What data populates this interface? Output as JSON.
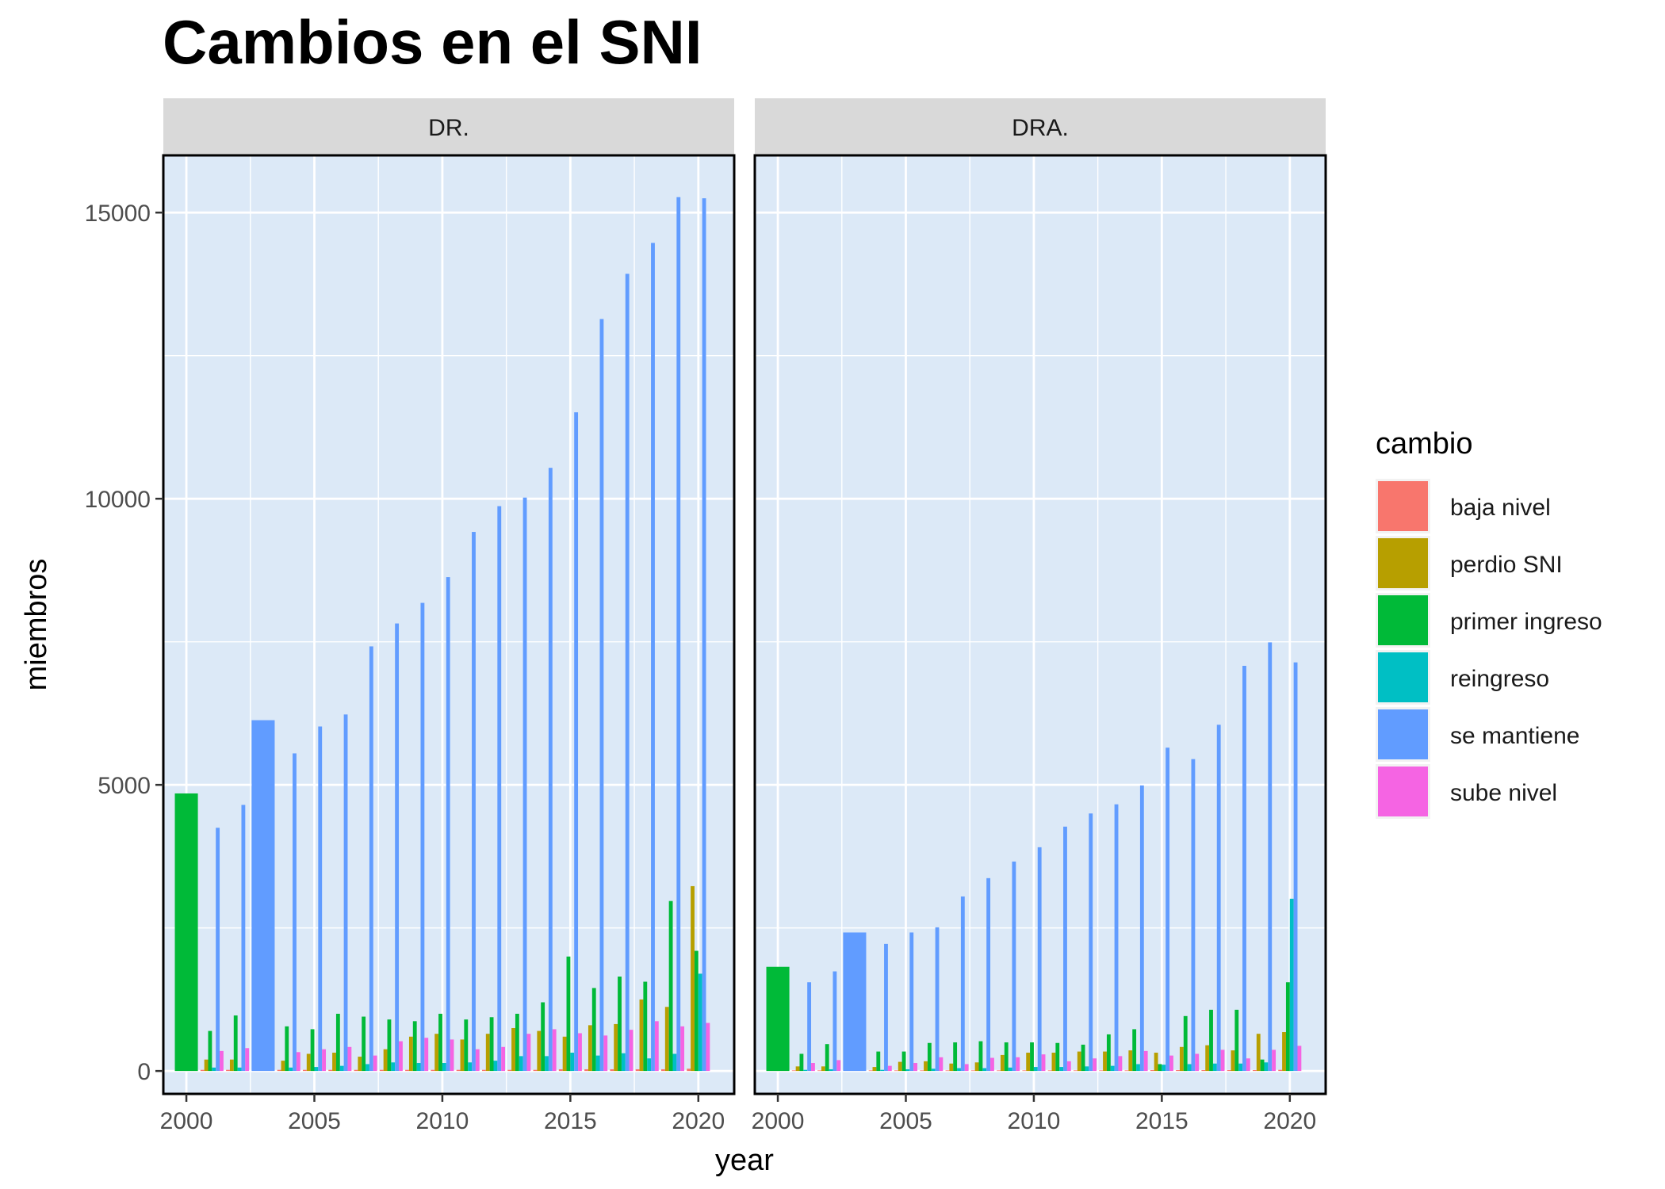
{
  "chart_data": {
    "type": "bar",
    "title": "Cambios en el SNI",
    "xlabel": "year",
    "ylabel": "miembros",
    "ylim": [
      -400,
      16000
    ],
    "xlim": [
      1999.1,
      2021.4
    ],
    "y_ticks": [
      0,
      5000,
      10000,
      15000
    ],
    "y_tick_labels": [
      "0",
      "5000",
      "10000",
      "15000"
    ],
    "x_ticks": [
      2000,
      2005,
      2010,
      2015,
      2020
    ],
    "x_tick_labels": [
      "2000",
      "2005",
      "2010",
      "2015",
      "2020"
    ],
    "grid": true,
    "legend": {
      "title": "cambio",
      "position": "right"
    },
    "series": [
      {
        "name": "baja nivel",
        "color": "#F8766D"
      },
      {
        "name": "perdio SNI",
        "color": "#B79F00"
      },
      {
        "name": "primer ingreso",
        "color": "#00BA38"
      },
      {
        "name": "reingreso",
        "color": "#00BFC4"
      },
      {
        "name": "se mantiene",
        "color": "#619CFF"
      },
      {
        "name": "sube nivel",
        "color": "#F564E3"
      }
    ],
    "years": [
      2000,
      2001,
      2002,
      2003,
      2004,
      2005,
      2006,
      2007,
      2008,
      2009,
      2010,
      2011,
      2012,
      2013,
      2014,
      2015,
      2016,
      2017,
      2018,
      2019,
      2020
    ],
    "panels": [
      {
        "label": "DR.",
        "values": {
          "baja nivel": [
            null,
            20,
            20,
            null,
            20,
            20,
            20,
            20,
            20,
            20,
            20,
            20,
            20,
            20,
            20,
            30,
            30,
            30,
            30,
            30,
            40
          ],
          "perdio SNI": [
            null,
            200,
            200,
            null,
            180,
            300,
            320,
            250,
            380,
            600,
            650,
            550,
            650,
            750,
            700,
            600,
            800,
            820,
            1250,
            1120,
            3230
          ],
          "primer ingreso": [
            4850,
            700,
            970,
            null,
            780,
            730,
            1000,
            950,
            900,
            870,
            1000,
            900,
            940,
            1000,
            1200,
            2000,
            1450,
            1650,
            1560,
            2970,
            2100
          ],
          "reingreso": [
            null,
            60,
            60,
            null,
            60,
            70,
            90,
            120,
            150,
            140,
            140,
            150,
            180,
            260,
            260,
            320,
            270,
            310,
            220,
            300,
            1700
          ],
          "se mantiene": [
            null,
            4250,
            4650,
            6130,
            5550,
            6020,
            6230,
            7420,
            7820,
            8180,
            8630,
            9420,
            9870,
            10020,
            10540,
            11510,
            13140,
            13930,
            14470,
            15270,
            15250
          ],
          "sube nivel": [
            null,
            350,
            400,
            null,
            330,
            380,
            420,
            270,
            520,
            580,
            550,
            380,
            420,
            650,
            730,
            660,
            620,
            720,
            870,
            780,
            840
          ]
        }
      },
      {
        "label": "DRA.",
        "values": {
          "baja nivel": [
            null,
            10,
            10,
            null,
            10,
            10,
            10,
            10,
            10,
            10,
            10,
            10,
            10,
            10,
            10,
            15,
            15,
            15,
            15,
            15,
            20
          ],
          "perdio SNI": [
            null,
            80,
            80,
            null,
            70,
            160,
            170,
            130,
            150,
            280,
            320,
            320,
            340,
            340,
            360,
            320,
            420,
            450,
            360,
            650,
            680
          ],
          "primer ingreso": [
            1820,
            300,
            470,
            null,
            340,
            340,
            490,
            500,
            520,
            500,
            500,
            490,
            460,
            640,
            730,
            120,
            960,
            1070,
            1070,
            200,
            1550
          ],
          "reingreso": [
            null,
            20,
            30,
            null,
            20,
            30,
            40,
            50,
            50,
            60,
            70,
            70,
            80,
            90,
            120,
            110,
            120,
            130,
            130,
            150,
            3010
          ],
          "se mantiene": [
            null,
            1550,
            1740,
            2420,
            2220,
            2420,
            2510,
            3050,
            3370,
            3660,
            3910,
            4270,
            4500,
            4660,
            4990,
            5650,
            5450,
            6050,
            7080,
            7490,
            7140
          ],
          "sube nivel": [
            null,
            140,
            190,
            null,
            90,
            140,
            240,
            120,
            230,
            240,
            290,
            170,
            220,
            260,
            350,
            270,
            300,
            370,
            220,
            370,
            440
          ]
        }
      }
    ]
  }
}
